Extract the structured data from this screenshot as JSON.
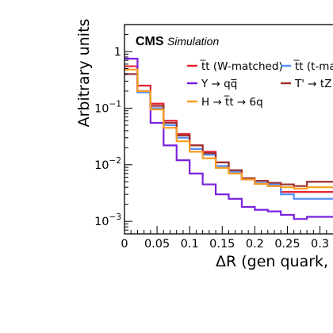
{
  "chart_data": {
    "type": "histogram-step",
    "experiment_label": "CMS",
    "experiment_sublabel": "Simulation",
    "ylabel": "Arbitrary units",
    "xlabel": "ΔR (gen quark, s",
    "y_scale": "log",
    "ylim": [
      0.0006,
      3
    ],
    "xlim": [
      0,
      0.32
    ],
    "x_ticks": [
      0,
      0.05,
      0.1,
      0.15,
      0.2,
      0.25,
      0.3
    ],
    "x_tick_labels": [
      "0",
      "0.05",
      "0.1",
      "0.15",
      "0.2",
      "0.25",
      "0.3"
    ],
    "y_major_ticks": [
      0.001,
      0.01,
      0.1,
      1
    ],
    "y_tick_labels": [
      {
        "base": "10",
        "exp": "−3"
      },
      {
        "base": "10",
        "exp": "−2"
      },
      {
        "base": "10",
        "exp": "−1"
      },
      {
        "base": "1",
        "exp": ""
      }
    ],
    "bin_edges": [
      0,
      0.02,
      0.04,
      0.06,
      0.08,
      0.1,
      0.12,
      0.14,
      0.16,
      0.18,
      0.2,
      0.22,
      0.24,
      0.26,
      0.28,
      0.3,
      0.32
    ],
    "series": [
      {
        "name": "t̅t (W-matched)",
        "color": "#e42536",
        "values": [
          0.55,
          0.25,
          0.12,
          0.06,
          0.035,
          0.022,
          0.017,
          0.011,
          0.008,
          0.0055,
          0.0046,
          0.0042,
          0.0033,
          0.0033,
          0.0033,
          0.0033
        ]
      },
      {
        "name": "t̅t (t-mat",
        "color": "#5790fc",
        "values": [
          0.4,
          0.19,
          0.1,
          0.05,
          0.03,
          0.019,
          0.015,
          0.0095,
          0.0075,
          0.0055,
          0.0048,
          0.0045,
          0.003,
          0.0025,
          0.0025,
          0.0025
        ]
      },
      {
        "name": "Y → qq̅",
        "color": "#7a21dd",
        "values": [
          0.75,
          0.2,
          0.055,
          0.022,
          0.012,
          0.007,
          0.0045,
          0.003,
          0.0025,
          0.0018,
          0.0016,
          0.0015,
          0.0013,
          0.0011,
          0.0012,
          0.0012
        ]
      },
      {
        "name": "T' → tZ",
        "color": "#9c2f2f",
        "values": [
          0.4,
          0.2,
          0.11,
          0.055,
          0.033,
          0.022,
          0.016,
          0.011,
          0.008,
          0.0058,
          0.0052,
          0.0048,
          0.0045,
          0.0042,
          0.005,
          0.005
        ]
      },
      {
        "name": "H → t̅t → 6q",
        "color": "#f89c20",
        "values": [
          0.48,
          0.2,
          0.095,
          0.045,
          0.026,
          0.017,
          0.013,
          0.0088,
          0.007,
          0.0055,
          0.0046,
          0.0042,
          0.004,
          0.0038,
          0.004,
          0.004
        ]
      }
    ],
    "legend_layout": [
      {
        "series": 0,
        "row": 0,
        "col": 0
      },
      {
        "series": 1,
        "row": 0,
        "col": 1
      },
      {
        "series": 2,
        "row": 1,
        "col": 0
      },
      {
        "series": 3,
        "row": 1,
        "col": 1
      },
      {
        "series": 4,
        "row": 2,
        "col": 0
      }
    ]
  }
}
